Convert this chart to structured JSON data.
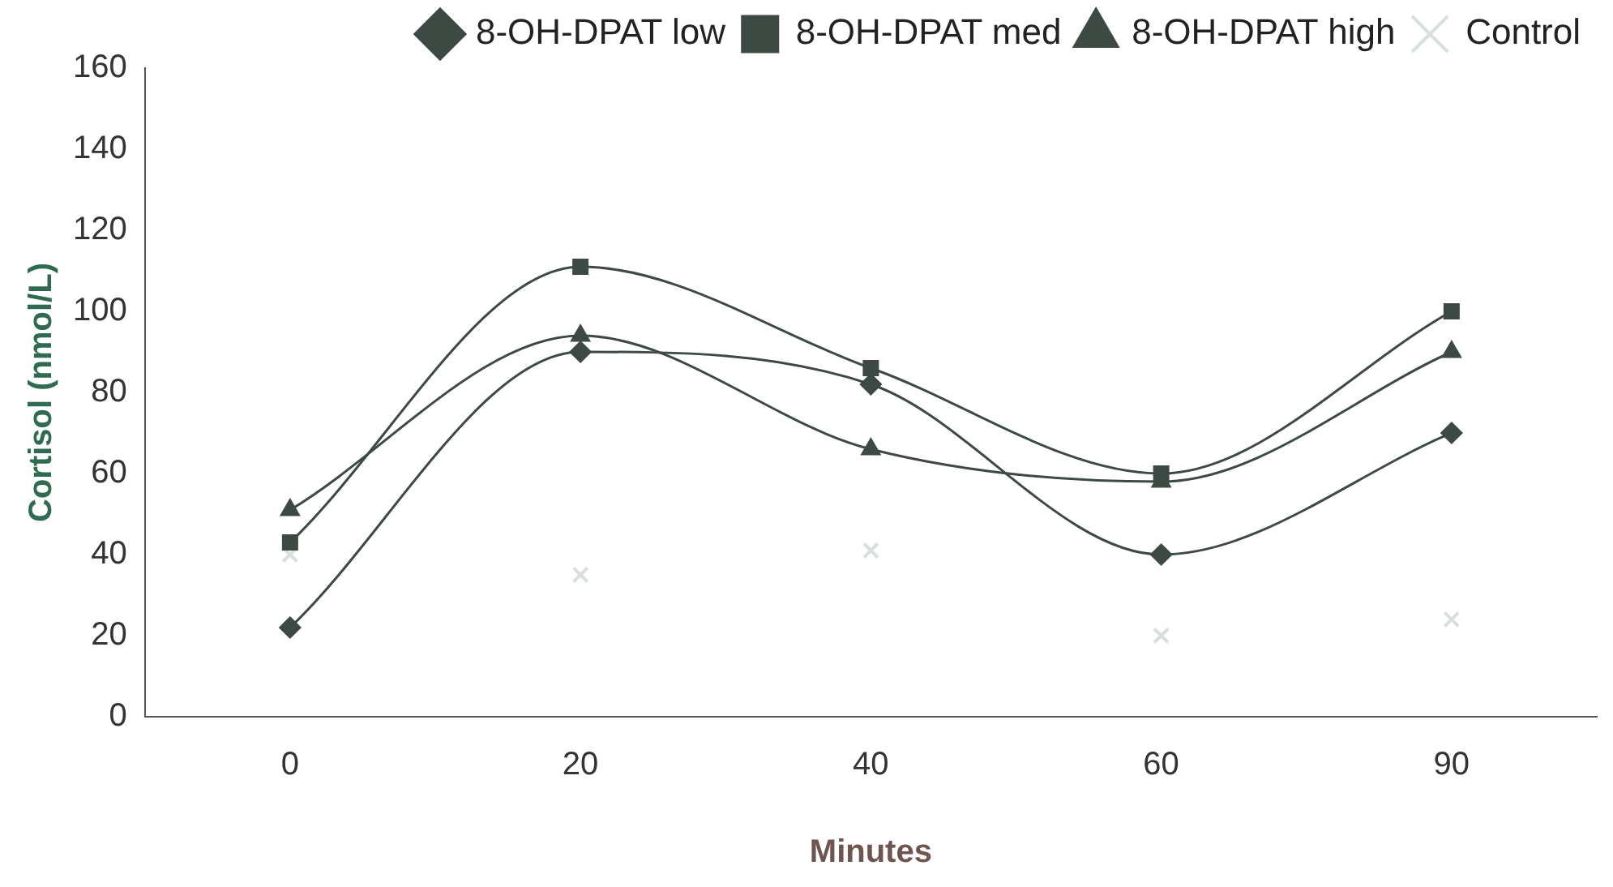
{
  "chart_data": {
    "type": "line",
    "xlabel": "Minutes",
    "ylabel": "Cortisol (nmol/L)",
    "categories": [
      "0",
      "20",
      "40",
      "60",
      "90"
    ],
    "series": [
      {
        "name": "8-OH-DPAT low",
        "color": "#3d4a44",
        "marker": "diamond",
        "values": [
          22,
          90,
          82,
          40,
          70
        ]
      },
      {
        "name": "8-OH-DPAT med",
        "color": "#3d4a44",
        "marker": "square",
        "values": [
          43,
          111,
          86,
          60,
          100
        ]
      },
      {
        "name": "8-OH-DPAT high",
        "color": "#3d4a44",
        "marker": "triangle",
        "values": [
          51,
          94,
          66,
          58,
          90
        ]
      },
      {
        "name": "Control",
        "type": "scatter",
        "color": "#d8e0dc",
        "marker": "cross",
        "values": [
          40,
          35,
          41,
          20,
          24
        ]
      }
    ],
    "ylim": [
      0,
      160
    ],
    "yticks": [
      0,
      20,
      40,
      60,
      80,
      100,
      120,
      140,
      160
    ],
    "grid": false,
    "legend": "top right"
  }
}
